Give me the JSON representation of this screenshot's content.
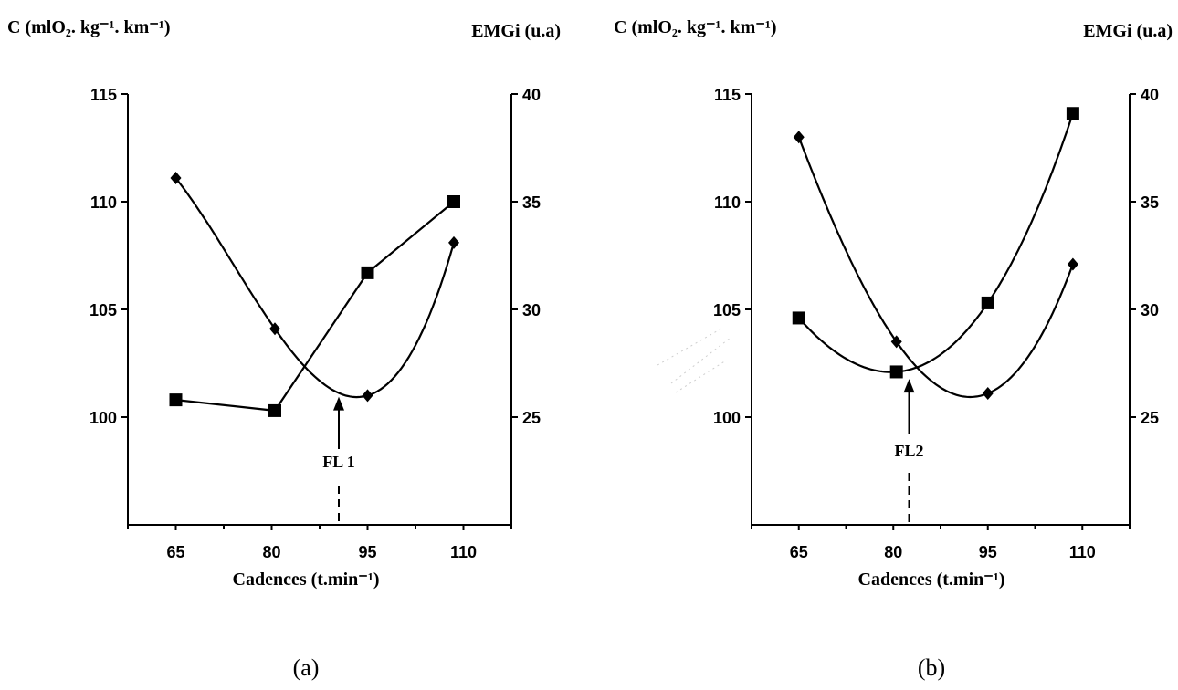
{
  "chart_data": [
    {
      "id": "a",
      "type": "line",
      "panel_label": "(a)",
      "y_left_label": "C (mlO₂. kg⁻¹. km⁻¹)",
      "y_right_label": "EMGi (u.a)",
      "xlabel": "Cadences (t.min⁻¹)",
      "x_ticks": [
        65,
        80,
        95,
        110
      ],
      "xlim": [
        57.5,
        117.5
      ],
      "y_left_ticks": [
        100,
        105,
        110,
        115
      ],
      "y_left_lim": [
        95,
        115
      ],
      "y_right_ticks": [
        25,
        30,
        35,
        40
      ],
      "y_right_lim": [
        20,
        40
      ],
      "series": [
        {
          "marker": "diamond",
          "axis": "left",
          "fit": "smooth",
          "x": [
            65,
            80.5,
            95,
            108.5
          ],
          "y": [
            111.1,
            104.1,
            101.0,
            108.1
          ]
        },
        {
          "marker": "square",
          "axis": "right",
          "fit": "polyline",
          "x": [
            65,
            80.5,
            95,
            108.5
          ],
          "y": [
            25.8,
            25.3,
            31.7,
            35.0
          ]
        }
      ],
      "curve_min_x": 90.5,
      "annotation": {
        "text": "FL 1",
        "x": 90.5
      }
    },
    {
      "id": "b",
      "type": "line",
      "panel_label": "(b)",
      "y_left_label": "C (mlO₂. kg⁻¹. km⁻¹)",
      "y_right_label": "EMGi (u.a)",
      "xlabel": "Cadences (t.min⁻¹)",
      "x_ticks": [
        65,
        80,
        95,
        110
      ],
      "xlim": [
        57.5,
        117.5
      ],
      "y_left_ticks": [
        100,
        105,
        110,
        115
      ],
      "y_left_lim": [
        95,
        115
      ],
      "y_right_ticks": [
        25,
        30,
        35,
        40
      ],
      "y_right_lim": [
        20,
        40
      ],
      "series": [
        {
          "marker": "diamond",
          "axis": "left",
          "fit": "smooth",
          "x": [
            65,
            80.5,
            95,
            108.5
          ],
          "y": [
            113.0,
            103.5,
            101.1,
            107.1
          ]
        },
        {
          "marker": "square",
          "axis": "right",
          "fit": "smooth",
          "x": [
            65,
            80.5,
            95,
            108.5
          ],
          "y": [
            29.6,
            27.1,
            30.3,
            39.1
          ]
        }
      ],
      "curve_min_x": 91,
      "annotation": {
        "text": "FL2",
        "x": 82.5
      }
    }
  ]
}
